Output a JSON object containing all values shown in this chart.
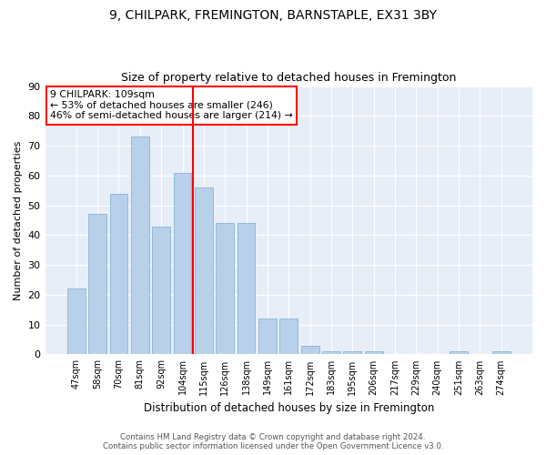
{
  "title1": "9, CHILPARK, FREMINGTON, BARNSTAPLE, EX31 3BY",
  "title2": "Size of property relative to detached houses in Fremington",
  "xlabel": "Distribution of detached houses by size in Fremington",
  "ylabel": "Number of detached properties",
  "bar_labels": [
    "47sqm",
    "58sqm",
    "70sqm",
    "81sqm",
    "92sqm",
    "104sqm",
    "115sqm",
    "126sqm",
    "138sqm",
    "149sqm",
    "161sqm",
    "172sqm",
    "183sqm",
    "195sqm",
    "206sqm",
    "217sqm",
    "229sqm",
    "240sqm",
    "251sqm",
    "263sqm",
    "274sqm"
  ],
  "bar_values": [
    22,
    47,
    54,
    73,
    43,
    61,
    56,
    44,
    44,
    12,
    12,
    3,
    1,
    1,
    1,
    0,
    0,
    0,
    1,
    0,
    1
  ],
  "bar_color": "#b8d0ea",
  "bar_edgecolor": "#7aadd4",
  "background_color": "#e8eef8",
  "grid_color": "#ffffff",
  "vline_x_index": 5.5,
  "vline_color": "red",
  "annotation_text": "9 CHILPARK: 109sqm\n← 53% of detached houses are smaller (246)\n46% of semi-detached houses are larger (214) →",
  "annotation_box_edgecolor": "red",
  "ylim": [
    0,
    90
  ],
  "yticks": [
    0,
    10,
    20,
    30,
    40,
    50,
    60,
    70,
    80,
    90
  ],
  "footer1": "Contains HM Land Registry data © Crown copyright and database right 2024.",
  "footer2": "Contains public sector information licensed under the Open Government Licence v3.0."
}
